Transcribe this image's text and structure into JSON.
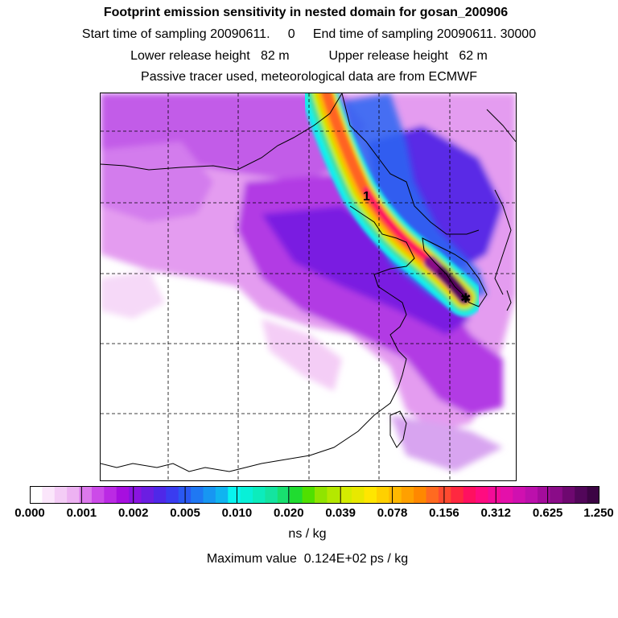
{
  "header": {
    "title": "Footprint emission sensitivity in nested domain for gosan_200906",
    "sampling": "Start time of sampling 20090611.     0     End time of sampling 20090611. 30000",
    "release": "Lower release height   82 m           Upper release height   62 m",
    "tracer": "Passive tracer used, meteorological data are from ECMWF"
  },
  "map": {
    "release_label": "1",
    "receptor_symbol": "✱"
  },
  "colorbar": {
    "tick_labels": [
      "0.000",
      "0.001",
      "0.002",
      "0.005",
      "0.010",
      "0.020",
      "0.039",
      "0.078",
      "0.156",
      "0.312",
      "0.625",
      "1.250"
    ],
    "colors": [
      "#ffffff",
      "#fbe6fb",
      "#f4ccf6",
      "#edb2f2",
      "#dc79ec",
      "#cc4be8",
      "#bb2ae4",
      "#a70fdf",
      "#8a14e0",
      "#6b1ee2",
      "#4f28e8",
      "#3a3cf0",
      "#2a58f2",
      "#1f78f3",
      "#1796f2",
      "#10b4f0",
      "#08f4f0",
      "#08f0d8",
      "#0cecbc",
      "#14e4a0",
      "#18e070",
      "#20dc30",
      "#50e000",
      "#90e400",
      "#b4e800",
      "#d4ec00",
      "#e8e800",
      "#ffe600",
      "#ffd000",
      "#ffb800",
      "#ffa000",
      "#ff8800",
      "#ff6a20",
      "#ff4a30",
      "#ff2840",
      "#ff1060",
      "#ff0c80",
      "#f20c98",
      "#e410aa",
      "#d010b0",
      "#bc10ac",
      "#a40c9c",
      "#8a0c88",
      "#6e0870",
      "#52065a",
      "#3c0444"
    ],
    "units": "ns / kg",
    "max_value": "Maximum value  0.124E+02 ps / kg"
  }
}
